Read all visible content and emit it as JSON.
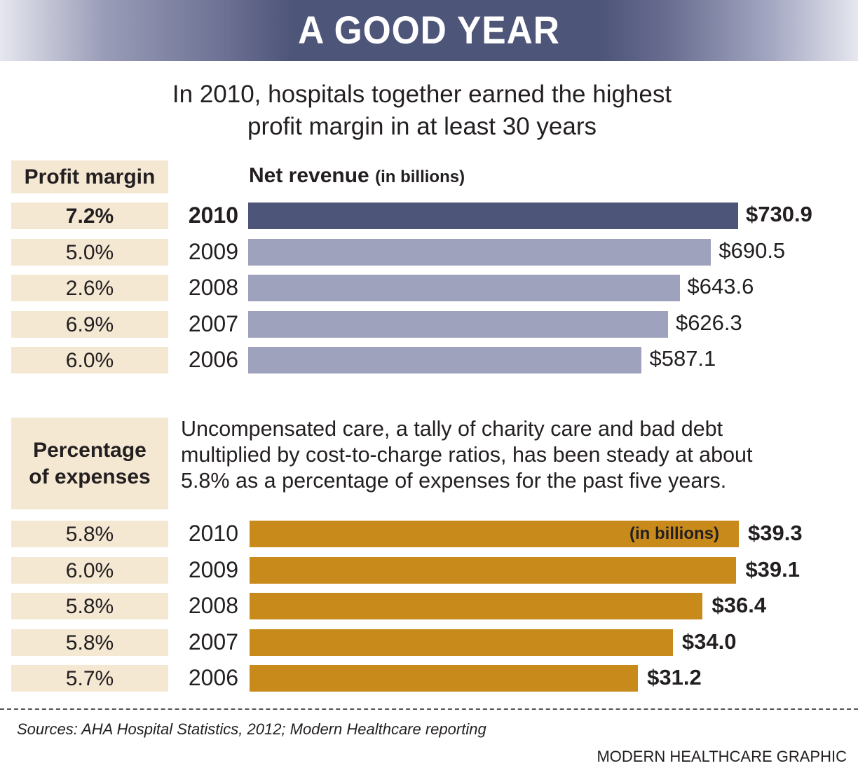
{
  "header": {
    "title": "A GOOD YEAR"
  },
  "subtitle": {
    "line1": "In 2010, hospitals together earned the highest",
    "line2": "profit margin in at least 30 years"
  },
  "colors": {
    "highlight_bar": "#4d5579",
    "revenue_bar": "#9ea2bd",
    "uncomp_bar": "#c98a1c",
    "tan_cell": "#f4e8d3"
  },
  "chart_data": [
    {
      "type": "bar",
      "orientation": "horizontal",
      "title": "Net revenue",
      "title_unit": "(in billions)",
      "left_column_header": "Profit margin",
      "categories": [
        "2010",
        "2009",
        "2008",
        "2007",
        "2006"
      ],
      "values": [
        730.9,
        690.5,
        643.6,
        626.3,
        587.1
      ],
      "value_labels": [
        "$730.9",
        "$690.5",
        "$643.6",
        "$626.3",
        "$587.1"
      ],
      "profit_margin": [
        "7.2%",
        "5.0%",
        "2.6%",
        "6.9%",
        "6.0%"
      ],
      "highlight": "2010",
      "xlim": [
        0,
        730.9
      ]
    },
    {
      "type": "bar",
      "orientation": "horizontal",
      "title": "Uncompensated care",
      "left_column_header": "Percentage of expenses",
      "note": "Uncompensated care, a tally of charity care and bad debt multiplied by cost-to-charge ratios, has been steady at about 5.8% as a percentage of expenses for the past five years.",
      "in_bar_label": "(in billions)",
      "categories": [
        "2010",
        "2009",
        "2008",
        "2007",
        "2006"
      ],
      "values": [
        39.3,
        39.1,
        36.4,
        34.0,
        31.2
      ],
      "value_labels": [
        "$39.3",
        "$39.1",
        "$36.4",
        "$34.0",
        "$31.2"
      ],
      "percentage_of_expenses": [
        "5.8%",
        "6.0%",
        "5.8%",
        "5.8%",
        "5.7%"
      ],
      "xlim": [
        0,
        39.3
      ]
    }
  ],
  "labels": {
    "pm_header": "Profit margin",
    "nr_header": "Net revenue",
    "nr_unit": "(in billions)",
    "pe_header_line1": "Percentage",
    "pe_header_line2": "of expenses",
    "note_line1": "Uncompensated care, a tally of charity care and bad debt",
    "note_line2": "multiplied by cost-to-charge ratios, has been steady at about",
    "note_line3": "5.8% as a percentage of expenses for the past five years.",
    "in_billions": "(in billions)"
  },
  "footer": {
    "sources": "Sources: AHA Hospital Statistics, 2012; Modern Healthcare reporting",
    "credit": "MODERN HEALTHCARE GRAPHIC"
  }
}
